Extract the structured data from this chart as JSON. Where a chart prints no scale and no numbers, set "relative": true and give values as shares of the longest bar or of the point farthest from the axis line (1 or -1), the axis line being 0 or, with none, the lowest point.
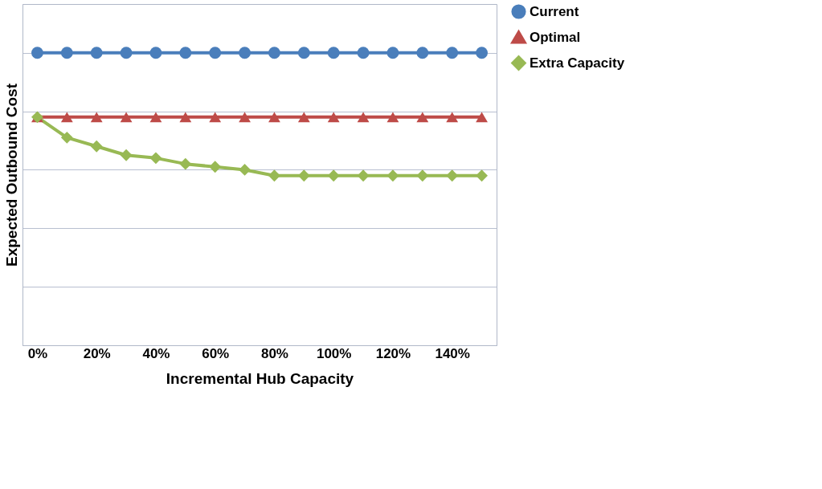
{
  "chart_data": {
    "type": "line",
    "relative": true,
    "xlabel": "Incremental Hub Capacity",
    "ylabel": "Expected Outbound Cost",
    "categories": [
      "0%",
      null,
      "20%",
      null,
      "40%",
      null,
      "60%",
      null,
      "80%",
      null,
      "100%",
      null,
      "120%",
      null,
      "140%",
      null
    ],
    "series": [
      {
        "name": "Current",
        "color": "#4a7ebb",
        "marker": "circle",
        "values": [
          1,
          1,
          1,
          1,
          1,
          1,
          1,
          1,
          1,
          1,
          1,
          1,
          1,
          1,
          1,
          1
        ]
      },
      {
        "name": "Optimal",
        "color": "#be4b48",
        "marker": "triangle",
        "values": [
          0.78,
          0.78,
          0.78,
          0.78,
          0.78,
          0.78,
          0.78,
          0.78,
          0.78,
          0.78,
          0.78,
          0.78,
          0.78,
          0.78,
          0.78,
          0.78
        ]
      },
      {
        "name": "Extra Capacity",
        "color": "#98b954",
        "marker": "diamond",
        "values": [
          0.78,
          0.71,
          0.68,
          0.65,
          0.64,
          0.62,
          0.61,
          0.6,
          0.58,
          0.58,
          0.58,
          0.58,
          0.58,
          0.58,
          0.58,
          0.58
        ]
      }
    ],
    "grid": "y",
    "legend": "right"
  }
}
